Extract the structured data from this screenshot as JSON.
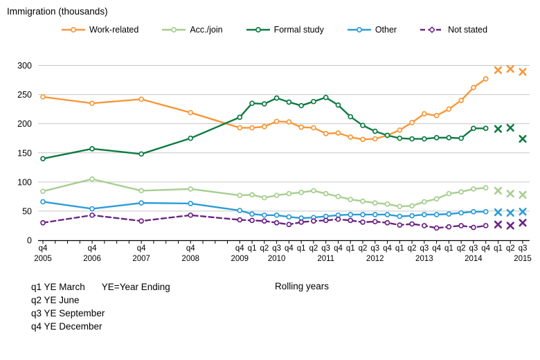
{
  "title": "Immigration (thousands)",
  "footnotes": {
    "lines": [
      "q1 YE March",
      "q2 YE June",
      "q3 YE September",
      "q4 YE December"
    ],
    "ye_note": "YE=Year Ending",
    "rolling_years": "Rolling years"
  },
  "chart_data": {
    "type": "line",
    "title": "Immigration (thousands)",
    "ylabel": "Immigration (thousands)",
    "ylim": [
      0,
      300
    ],
    "yticks": [
      0,
      50,
      100,
      150,
      200,
      250,
      300
    ],
    "grid": "horizontal",
    "legend_position": "top",
    "provisional_points": 3,
    "provisional_marker": "x",
    "categories": [
      "q4 2005",
      "q4 2006",
      "q4 2007",
      "q4 2008",
      "q4 2009",
      "q1 2010",
      "q2 2010",
      "q3 2010",
      "q4 2010",
      "q1 2011",
      "q2 2011",
      "q3 2011",
      "q4 2011",
      "q1 2012",
      "q2 2012",
      "q3 2012",
      "q4 2012",
      "q1 2013",
      "q2 2013",
      "q3 2013",
      "q4 2013",
      "q1 2014",
      "q2 2014",
      "q3 2014",
      "q4 2014",
      "q1 2015",
      "q2 2015",
      "q3 2015"
    ],
    "x_pos": [
      0,
      4,
      8,
      12,
      16,
      17,
      18,
      19,
      20,
      21,
      22,
      23,
      24,
      25,
      26,
      27,
      28,
      29,
      30,
      31,
      32,
      33,
      34,
      35,
      36,
      37,
      38,
      39
    ],
    "x_axis": {
      "total_quarter_ticks": 40,
      "quarter_labels": [
        [
          0,
          "q4"
        ],
        [
          4,
          "q4"
        ],
        [
          8,
          "q4"
        ],
        [
          12,
          "q4"
        ],
        [
          16,
          "q4"
        ],
        [
          17,
          "q1"
        ],
        [
          18,
          "q2"
        ],
        [
          19,
          "q3"
        ],
        [
          20,
          "q4"
        ],
        [
          21,
          "q1"
        ],
        [
          22,
          "q2"
        ],
        [
          23,
          "q3"
        ],
        [
          24,
          "q4"
        ],
        [
          25,
          "q1"
        ],
        [
          26,
          "q2"
        ],
        [
          27,
          "q3"
        ],
        [
          28,
          "q4"
        ],
        [
          29,
          "q1"
        ],
        [
          30,
          "q2"
        ],
        [
          31,
          "q3"
        ],
        [
          32,
          "q4"
        ],
        [
          33,
          "q1"
        ],
        [
          34,
          "q2"
        ],
        [
          35,
          "q3"
        ],
        [
          36,
          "q4"
        ],
        [
          37,
          "q1"
        ],
        [
          38,
          "q2"
        ],
        [
          39,
          "q3"
        ]
      ],
      "year_labels": [
        [
          0,
          "2005"
        ],
        [
          4,
          "2006"
        ],
        [
          8,
          "2007"
        ],
        [
          12,
          "2008"
        ],
        [
          16,
          "2009"
        ],
        [
          19,
          "2010"
        ],
        [
          23,
          "2011"
        ],
        [
          27,
          "2012"
        ],
        [
          31,
          "2013"
        ],
        [
          35,
          "2014"
        ],
        [
          39,
          "2015"
        ]
      ]
    },
    "series": [
      {
        "name": "Work-related",
        "color": "#F79838",
        "dashed": false,
        "values": [
          246,
          235,
          242,
          219,
          193,
          193,
          195,
          204,
          203,
          194,
          193,
          183,
          184,
          177,
          173,
          174,
          180,
          189,
          202,
          217,
          214,
          225,
          240,
          262,
          277,
          292,
          294,
          289
        ]
      },
      {
        "name": "Acc./join",
        "color": "#A6CE8E",
        "dashed": false,
        "values": [
          84,
          105,
          85,
          88,
          77,
          78,
          73,
          77,
          80,
          82,
          85,
          80,
          75,
          70,
          67,
          64,
          62,
          58,
          59,
          66,
          71,
          80,
          83,
          88,
          90,
          85,
          80,
          78
        ]
      },
      {
        "name": "Formal study",
        "color": "#0C7A42",
        "dashed": false,
        "values": [
          140,
          157,
          148,
          175,
          211,
          235,
          234,
          244,
          237,
          231,
          238,
          245,
          232,
          212,
          197,
          187,
          180,
          175,
          174,
          174,
          176,
          176,
          175,
          192,
          192,
          191,
          193,
          174
        ]
      },
      {
        "name": "Other",
        "color": "#2B9CD8",
        "dashed": false,
        "values": [
          66,
          54,
          64,
          63,
          51,
          45,
          43,
          43,
          40,
          38,
          39,
          41,
          43,
          44,
          44,
          44,
          44,
          41,
          42,
          44,
          44,
          45,
          47,
          49,
          49,
          48,
          47,
          49
        ]
      },
      {
        "name": "Not stated",
        "color": "#6A2383",
        "dashed": true,
        "values": [
          30,
          43,
          33,
          43,
          35,
          34,
          33,
          30,
          27,
          31,
          33,
          34,
          36,
          34,
          31,
          32,
          30,
          26,
          28,
          25,
          21,
          23,
          25,
          22,
          25,
          27,
          25,
          30
        ]
      }
    ],
    "gridline_color": "#C6C6C6",
    "axis_color": "#000000"
  }
}
